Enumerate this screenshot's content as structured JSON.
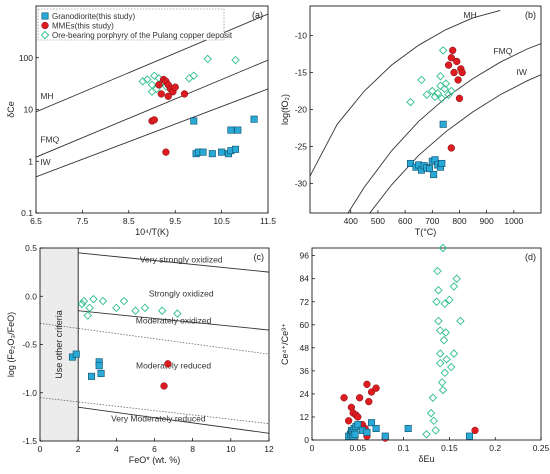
{
  "colors": {
    "granodiorite": "#2aa9d6",
    "mmes": "#dd1c22",
    "porphyry": "#2fbf8a",
    "criteria_box": "#ececec"
  },
  "legend": [
    {
      "key": "granodiorite",
      "label": "Granodiorite(this study)",
      "marker": "square"
    },
    {
      "key": "mmes",
      "label": "MMEs(this study)",
      "marker": "circle"
    },
    {
      "key": "porphyry",
      "label": "Ore-bearing porphyry of the Pulang copper deposit",
      "marker": "diamond"
    }
  ],
  "chart_data": [
    {
      "panel": "(a)",
      "type": "scatter",
      "xlabel": "10⁴/T(K)",
      "ylabel": "δCe",
      "xlim": [
        6.5,
        11.5
      ],
      "ylim": [
        0.1,
        1000
      ],
      "yscale": "log",
      "xticks": [
        "6.5",
        "7.5",
        "8.5",
        "9.5",
        "10.5",
        "11.5"
      ],
      "yticks": [
        "0.1",
        "1",
        "10",
        "100"
      ],
      "curves": [
        {
          "label": "MH",
          "points": [
            [
              6.5,
              9
            ],
            [
              11.5,
              700
            ]
          ]
        },
        {
          "label": "FMQ",
          "points": [
            [
              6.5,
              1.2
            ],
            [
              11.5,
              90
            ]
          ]
        },
        {
          "label": "IW",
          "points": [
            [
              6.5,
              0.5
            ],
            [
              11.5,
              25
            ]
          ]
        }
      ],
      "series": {
        "porphyry": [
          [
            8.8,
            35
          ],
          [
            8.9,
            38
          ],
          [
            9.0,
            30
          ],
          [
            9.05,
            45
          ],
          [
            9.1,
            25
          ],
          [
            9.15,
            40
          ],
          [
            9.2,
            33
          ],
          [
            9.3,
            28
          ],
          [
            9.8,
            40
          ],
          [
            9.9,
            45
          ],
          [
            10.2,
            95
          ],
          [
            10.8,
            90
          ],
          [
            9.0,
            22
          ]
        ],
        "mmes": [
          [
            9.0,
            6
          ],
          [
            9.05,
            6.3
          ],
          [
            9.2,
            20
          ],
          [
            9.25,
            38
          ],
          [
            9.3,
            35
          ],
          [
            9.35,
            30
          ],
          [
            9.4,
            25
          ],
          [
            9.45,
            22
          ],
          [
            9.35,
            18
          ],
          [
            9.3,
            1.5
          ],
          [
            9.5,
            27
          ],
          [
            9.7,
            20
          ],
          [
            9.15,
            30
          ]
        ],
        "granodiorite": [
          [
            9.9,
            6
          ],
          [
            9.95,
            1.4
          ],
          [
            10.0,
            1.5
          ],
          [
            10.1,
            1.5
          ],
          [
            10.3,
            1.4
          ],
          [
            10.5,
            1.5
          ],
          [
            10.65,
            1.4
          ],
          [
            10.7,
            1.6
          ],
          [
            10.7,
            4
          ],
          [
            10.85,
            4
          ],
          [
            11.2,
            6.5
          ],
          [
            10.8,
            1.7
          ]
        ]
      }
    },
    {
      "panel": "(b)",
      "type": "scatter",
      "xlabel": "T(°C)",
      "ylabel": "log(fO₂)",
      "xlim": [
        250,
        1100
      ],
      "ylim": [
        -34,
        -6
      ],
      "xticks": [
        "400",
        "500",
        "600",
        "700",
        "800",
        "900",
        "1000"
      ],
      "yticks": [
        "-30",
        "-25",
        "-20",
        "-15",
        "-10"
      ],
      "curves": [
        {
          "label": "MH",
          "points": [
            [
              250,
              -29
            ],
            [
              350,
              -22
            ],
            [
              450,
              -17.5
            ],
            [
              550,
              -14
            ],
            [
              650,
              -11.3
            ],
            [
              750,
              -9.2
            ],
            [
              850,
              -7.6
            ],
            [
              950,
              -6.6
            ]
          ]
        },
        {
          "label": "FMQ",
          "points": [
            [
              390,
              -34
            ],
            [
              450,
              -30.5
            ],
            [
              550,
              -25.6
            ],
            [
              650,
              -21.6
            ],
            [
              750,
              -18.4
            ],
            [
              850,
              -15.8
            ],
            [
              950,
              -13.6
            ],
            [
              1050,
              -11.8
            ],
            [
              1100,
              -11.1
            ]
          ]
        },
        {
          "label": "IW",
          "points": [
            [
              470,
              -34
            ],
            [
              550,
              -30.2
            ],
            [
              650,
              -26.2
            ],
            [
              750,
              -23
            ],
            [
              850,
              -20.3
            ],
            [
              950,
              -18
            ],
            [
              1050,
              -16.1
            ],
            [
              1100,
              -15.3
            ]
          ]
        }
      ],
      "series": {
        "porphyry": [
          [
            620,
            -19
          ],
          [
            660,
            -16
          ],
          [
            680,
            -18
          ],
          [
            700,
            -17.5
          ],
          [
            710,
            -18.3
          ],
          [
            720,
            -17.8
          ],
          [
            730,
            -15.5
          ],
          [
            735,
            -18.5
          ],
          [
            740,
            -12
          ],
          [
            745,
            -17.2
          ],
          [
            750,
            -16.5
          ],
          [
            760,
            -18
          ],
          [
            770,
            -17.5
          ],
          [
            730,
            -16.8
          ]
        ],
        "mmes": [
          [
            760,
            -14
          ],
          [
            770,
            -13
          ],
          [
            775,
            -12
          ],
          [
            780,
            -15
          ],
          [
            790,
            -13.5
          ],
          [
            795,
            -16
          ],
          [
            800,
            -18.5
          ],
          [
            805,
            -14.5
          ],
          [
            810,
            -15
          ],
          [
            770,
            -25.2
          ]
        ],
        "granodiorite": [
          [
            620,
            -27.3
          ],
          [
            640,
            -27.8
          ],
          [
            650,
            -27.5
          ],
          [
            660,
            -28.2
          ],
          [
            670,
            -27.6
          ],
          [
            680,
            -27.9
          ],
          [
            690,
            -28
          ],
          [
            700,
            -27
          ],
          [
            705,
            -28.8
          ],
          [
            710,
            -26.8
          ],
          [
            720,
            -27.5
          ],
          [
            730,
            -27.8
          ],
          [
            735,
            -27.3
          ],
          [
            740,
            -22
          ]
        ]
      }
    },
    {
      "panel": "(c)",
      "type": "scatter",
      "xlabel": "FeO* (wt. %)",
      "ylabel": "log (Fe₂O₃/FeO)",
      "xlim": [
        0,
        12
      ],
      "ylim": [
        -1.5,
        0.5
      ],
      "xticks": [
        "0",
        "2",
        "4",
        "6",
        "8",
        "10",
        "12"
      ],
      "yticks": [
        "-1.5",
        "-1.0",
        "-0.5",
        "0.0",
        "0.5"
      ],
      "criteria_label": "Use other criteria",
      "region_labels": [
        "Very strongly oxidized",
        "Strongly oxidized",
        "Moderately oxidized",
        "Moderately reduced",
        "Very Moderately reduced"
      ],
      "series": {
        "porphyry": [
          [
            2.2,
            -0.08
          ],
          [
            2.3,
            -0.05
          ],
          [
            2.5,
            -0.2
          ],
          [
            2.6,
            -0.12
          ],
          [
            2.8,
            -0.03
          ],
          [
            3.3,
            -0.05
          ],
          [
            4.0,
            -0.12
          ],
          [
            4.4,
            -0.05
          ],
          [
            5.0,
            -0.15
          ],
          [
            5.5,
            -0.12
          ],
          [
            6.4,
            -0.15
          ],
          [
            7.2,
            -0.18
          ]
        ],
        "mmes": [
          [
            6.7,
            -0.7
          ],
          [
            6.5,
            -0.93
          ]
        ],
        "granodiorite": [
          [
            1.7,
            -0.63
          ],
          [
            1.9,
            -0.6
          ],
          [
            2.7,
            -0.83
          ],
          [
            3.1,
            -0.68
          ],
          [
            3.1,
            -0.72
          ],
          [
            3.2,
            -0.8
          ]
        ]
      }
    },
    {
      "panel": "(d)",
      "type": "scatter",
      "xlabel": "δEu",
      "ylabel": "Ce⁴⁺/Ce³⁺",
      "xlim": [
        0,
        0.25
      ],
      "ylim": [
        0,
        100
      ],
      "xticks": [
        "0",
        "0.05",
        "0.1",
        "0.15",
        "0.2",
        "0.25"
      ],
      "yticks": [
        "0",
        "12",
        "24",
        "36",
        "48",
        "60",
        "72",
        "84",
        "96"
      ],
      "series": {
        "porphyry": [
          [
            0.125,
            3
          ],
          [
            0.13,
            14
          ],
          [
            0.132,
            22
          ],
          [
            0.133,
            10
          ],
          [
            0.135,
            5
          ],
          [
            0.136,
            72
          ],
          [
            0.137,
            88
          ],
          [
            0.138,
            62
          ],
          [
            0.138,
            78
          ],
          [
            0.14,
            45
          ],
          [
            0.14,
            40
          ],
          [
            0.14,
            57
          ],
          [
            0.142,
            30
          ],
          [
            0.143,
            26
          ],
          [
            0.143,
            100
          ],
          [
            0.144,
            52
          ],
          [
            0.145,
            35
          ],
          [
            0.145,
            71
          ],
          [
            0.146,
            56
          ],
          [
            0.147,
            42
          ],
          [
            0.15,
            73
          ],
          [
            0.152,
            38
          ],
          [
            0.155,
            80
          ],
          [
            0.155,
            45
          ],
          [
            0.158,
            84
          ],
          [
            0.162,
            62
          ]
        ],
        "mmes": [
          [
            0.035,
            22
          ],
          [
            0.04,
            10
          ],
          [
            0.043,
            17
          ],
          [
            0.045,
            14
          ],
          [
            0.048,
            13
          ],
          [
            0.05,
            12
          ],
          [
            0.052,
            22
          ],
          [
            0.055,
            8
          ],
          [
            0.058,
            6
          ],
          [
            0.06,
            29
          ],
          [
            0.062,
            20
          ],
          [
            0.065,
            25
          ],
          [
            0.07,
            27
          ],
          [
            0.06,
            2
          ],
          [
            0.08,
            1
          ],
          [
            0.178,
            5
          ]
        ],
        "granodiorite": [
          [
            0.04,
            2
          ],
          [
            0.042,
            3
          ],
          [
            0.043,
            5
          ],
          [
            0.044,
            4
          ],
          [
            0.045,
            2
          ],
          [
            0.046,
            6
          ],
          [
            0.047,
            3
          ],
          [
            0.048,
            7
          ],
          [
            0.05,
            8
          ],
          [
            0.055,
            5
          ],
          [
            0.06,
            4
          ],
          [
            0.065,
            9
          ],
          [
            0.07,
            6
          ],
          [
            0.08,
            2
          ],
          [
            0.105,
            6
          ],
          [
            0.172,
            2
          ]
        ]
      }
    }
  ]
}
